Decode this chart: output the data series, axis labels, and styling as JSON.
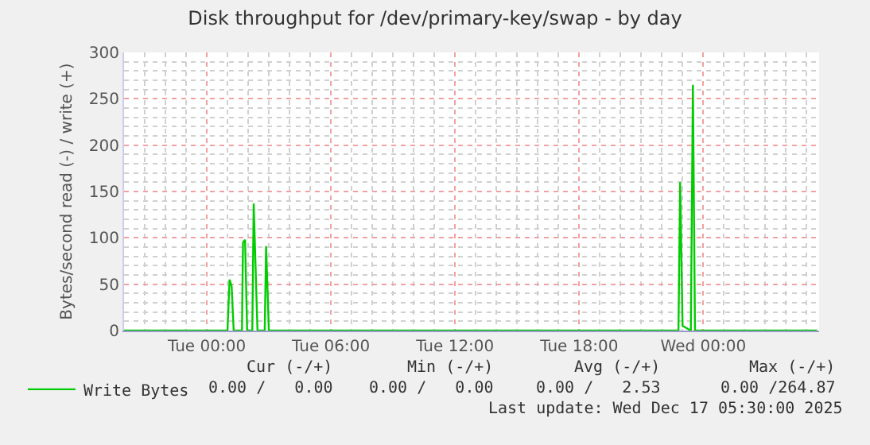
{
  "chart_data": {
    "type": "line",
    "title": "Disk throughput for /dev/primary-key/swap - by day",
    "ylabel": "Bytes/second read (-) / write (+)",
    "x": [
      "2025-12-15T20:00",
      "2025-12-16T01:00",
      "2025-12-16T01:06",
      "2025-12-16T01:12",
      "2025-12-16T01:18",
      "2025-12-16T01:42",
      "2025-12-16T01:45",
      "2025-12-16T01:51",
      "2025-12-16T01:57",
      "2025-12-16T02:12",
      "2025-12-16T02:16",
      "2025-12-16T02:27",
      "2025-12-16T02:48",
      "2025-12-16T02:52",
      "2025-12-16T03:00",
      "2025-12-16T22:48",
      "2025-12-16T22:53",
      "2025-12-16T23:00",
      "2025-12-16T23:24",
      "2025-12-16T23:30",
      "2025-12-16T23:36",
      "2025-12-17T05:30"
    ],
    "series": [
      {
        "name": "Write Bytes",
        "color": "#00cc00",
        "values": [
          0,
          0,
          55,
          48,
          0,
          0,
          95,
          98,
          0,
          0,
          137,
          0,
          0,
          91,
          0,
          0,
          160,
          5,
          0,
          265,
          0,
          0
        ]
      }
    ],
    "xlim": [
      "2025-12-15T20:00",
      "2025-12-17T05:36"
    ],
    "xticks": [
      {
        "value": "2025-12-16T00:00",
        "label": "Tue 00:00"
      },
      {
        "value": "2025-12-16T06:00",
        "label": "Tue 06:00"
      },
      {
        "value": "2025-12-16T12:00",
        "label": "Tue 12:00"
      },
      {
        "value": "2025-12-16T18:00",
        "label": "Tue 18:00"
      },
      {
        "value": "2025-12-17T00:00",
        "label": "Wed 00:00"
      }
    ],
    "ylim": [
      0,
      300
    ],
    "yticks": [
      0,
      50,
      100,
      150,
      200,
      250,
      300
    ],
    "grid": true,
    "legend": "bottom left",
    "marker": "none",
    "line_style": "solid",
    "annotations": [
      "Cur (-/+)",
      "Min (-/+)",
      "Avg (-/+)",
      "Max (-/+)",
      "0.00 /   0.00",
      "0.00 /   0.00",
      "0.00 /   2.53",
      "0.00 /264.87",
      "Last update: Wed Dec 17 05:30:00 2025"
    ]
  }
}
